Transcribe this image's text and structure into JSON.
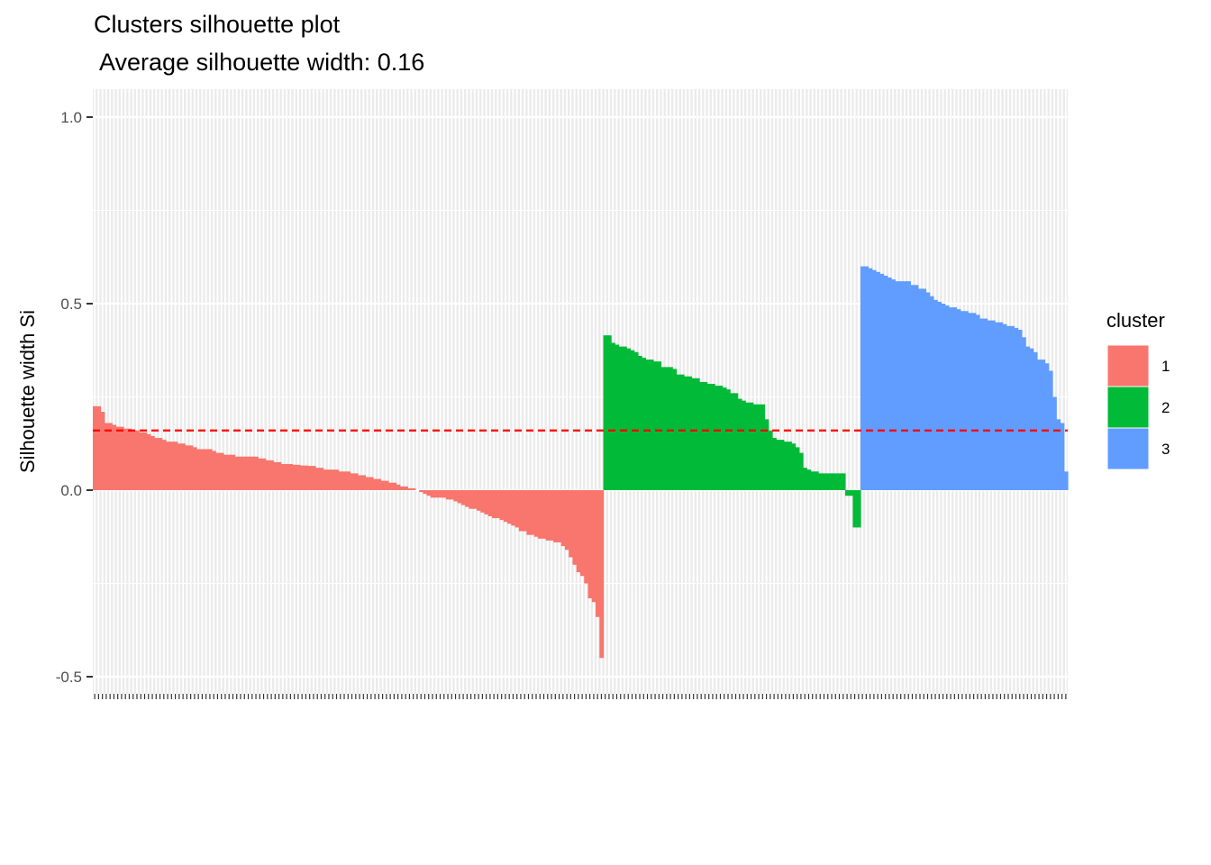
{
  "chart_data": {
    "type": "bar",
    "title": "Clusters silhouette plot",
    "subtitle": " Average silhouette width: 0.16",
    "ylabel": "Silhouette width Si",
    "xlabel": "",
    "ylim": [
      -0.5,
      1.0
    ],
    "yticks": [
      -0.5,
      0.0,
      0.5,
      1.0
    ],
    "ytick_labels": [
      "-0.5",
      "0.0",
      "0.5",
      "1.0"
    ],
    "grid": true,
    "legend_position": "right",
    "average_line": {
      "value": 0.16,
      "color": "#ff0000",
      "style": "dashed"
    },
    "legend": {
      "title": "cluster",
      "items": [
        "1",
        "2",
        "3"
      ]
    },
    "series": [
      {
        "name": "1",
        "color": "#F8766D",
        "values": [
          0.225,
          0.225,
          0.21,
          0.18,
          0.18,
          0.175,
          0.17,
          0.17,
          0.165,
          0.165,
          0.16,
          0.16,
          0.155,
          0.155,
          0.15,
          0.145,
          0.14,
          0.14,
          0.135,
          0.13,
          0.13,
          0.13,
          0.125,
          0.125,
          0.12,
          0.12,
          0.115,
          0.11,
          0.11,
          0.11,
          0.11,
          0.105,
          0.1,
          0.1,
          0.095,
          0.095,
          0.095,
          0.09,
          0.09,
          0.09,
          0.09,
          0.09,
          0.09,
          0.085,
          0.085,
          0.08,
          0.08,
          0.075,
          0.075,
          0.07,
          0.07,
          0.07,
          0.068,
          0.068,
          0.066,
          0.066,
          0.065,
          0.065,
          0.06,
          0.06,
          0.055,
          0.055,
          0.055,
          0.055,
          0.05,
          0.05,
          0.05,
          0.045,
          0.045,
          0.04,
          0.04,
          0.035,
          0.035,
          0.03,
          0.03,
          0.025,
          0.025,
          0.02,
          0.02,
          0.015,
          0.01,
          0.01,
          0.005,
          0.005,
          0.0,
          -0.005,
          -0.01,
          -0.015,
          -0.02,
          -0.02,
          -0.02,
          -0.02,
          -0.025,
          -0.025,
          -0.03,
          -0.035,
          -0.04,
          -0.045,
          -0.05,
          -0.05,
          -0.055,
          -0.06,
          -0.065,
          -0.07,
          -0.075,
          -0.075,
          -0.08,
          -0.085,
          -0.09,
          -0.095,
          -0.1,
          -0.11,
          -0.11,
          -0.12,
          -0.12,
          -0.125,
          -0.13,
          -0.13,
          -0.135,
          -0.135,
          -0.14,
          -0.14,
          -0.15,
          -0.16,
          -0.18,
          -0.2,
          -0.22,
          -0.23,
          -0.25,
          -0.29,
          -0.3,
          -0.34,
          -0.45
        ]
      },
      {
        "name": "2",
        "color": "#00BA38",
        "values": [
          0.415,
          0.415,
          0.395,
          0.39,
          0.385,
          0.385,
          0.38,
          0.375,
          0.37,
          0.36,
          0.355,
          0.35,
          0.35,
          0.345,
          0.345,
          0.33,
          0.33,
          0.33,
          0.325,
          0.31,
          0.31,
          0.305,
          0.305,
          0.3,
          0.3,
          0.29,
          0.29,
          0.285,
          0.285,
          0.28,
          0.28,
          0.275,
          0.27,
          0.26,
          0.26,
          0.245,
          0.24,
          0.235,
          0.235,
          0.23,
          0.23,
          0.23,
          0.19,
          0.16,
          0.14,
          0.135,
          0.135,
          0.13,
          0.13,
          0.125,
          0.115,
          0.1,
          0.06,
          0.055,
          0.05,
          0.05,
          0.045,
          0.045,
          0.045,
          0.045,
          0.045,
          0.045,
          0.045,
          -0.015,
          -0.015,
          -0.1,
          -0.1
        ]
      },
      {
        "name": "3",
        "color": "#619CFF",
        "values": [
          0.6,
          0.6,
          0.595,
          0.59,
          0.585,
          0.58,
          0.575,
          0.57,
          0.565,
          0.56,
          0.56,
          0.56,
          0.56,
          0.55,
          0.55,
          0.54,
          0.54,
          0.53,
          0.52,
          0.51,
          0.505,
          0.5,
          0.495,
          0.49,
          0.49,
          0.485,
          0.48,
          0.48,
          0.475,
          0.475,
          0.47,
          0.46,
          0.46,
          0.455,
          0.455,
          0.45,
          0.45,
          0.445,
          0.44,
          0.44,
          0.435,
          0.43,
          0.41,
          0.385,
          0.38,
          0.37,
          0.35,
          0.35,
          0.34,
          0.32,
          0.25,
          0.19,
          0.18,
          0.05
        ]
      }
    ]
  }
}
